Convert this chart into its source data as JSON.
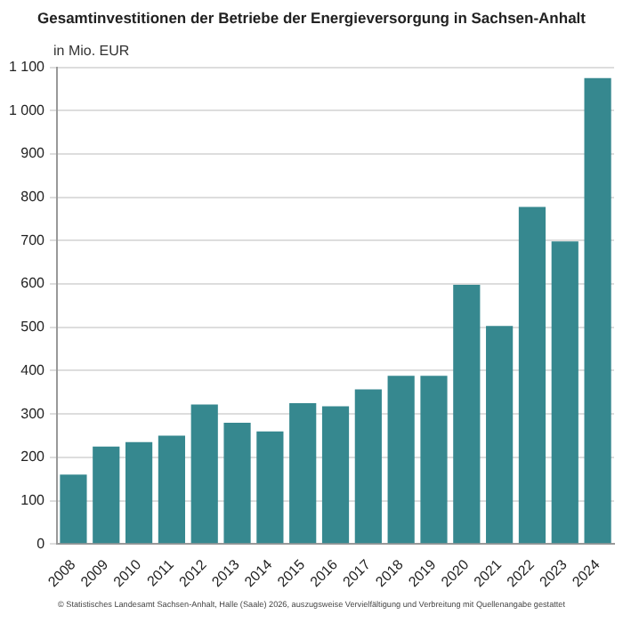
{
  "chart_data": {
    "type": "bar",
    "title": "Gesamtinvestitionen der Betriebe der Energieversorgung in Sachsen-Anhalt",
    "ylabel": "in Mio. EUR",
    "categories": [
      "2008",
      "2009",
      "2010",
      "2011",
      "2012",
      "2013",
      "2014",
      "2015",
      "2016",
      "2017",
      "2018",
      "2019",
      "2020",
      "2021",
      "2022",
      "2023",
      "2024"
    ],
    "values": [
      160,
      225,
      235,
      250,
      322,
      280,
      260,
      325,
      318,
      357,
      388,
      388,
      598,
      503,
      778,
      698,
      1075
    ],
    "color": "#36888f",
    "ylim": [
      0,
      1100
    ],
    "yticks": [
      0,
      100,
      200,
      300,
      400,
      500,
      600,
      700,
      800,
      900,
      {
        "value": 1000,
        "label": "1 000"
      },
      {
        "value": 1100,
        "label": "1 100"
      }
    ],
    "grid": "y",
    "annotations": [
      "© Statistisches Landesamt Sachsen-Anhalt, Halle (Saale) 2026, auszugsweise Vervielfältigung und Verbreitung mit Quellenangabe gestattet"
    ]
  }
}
